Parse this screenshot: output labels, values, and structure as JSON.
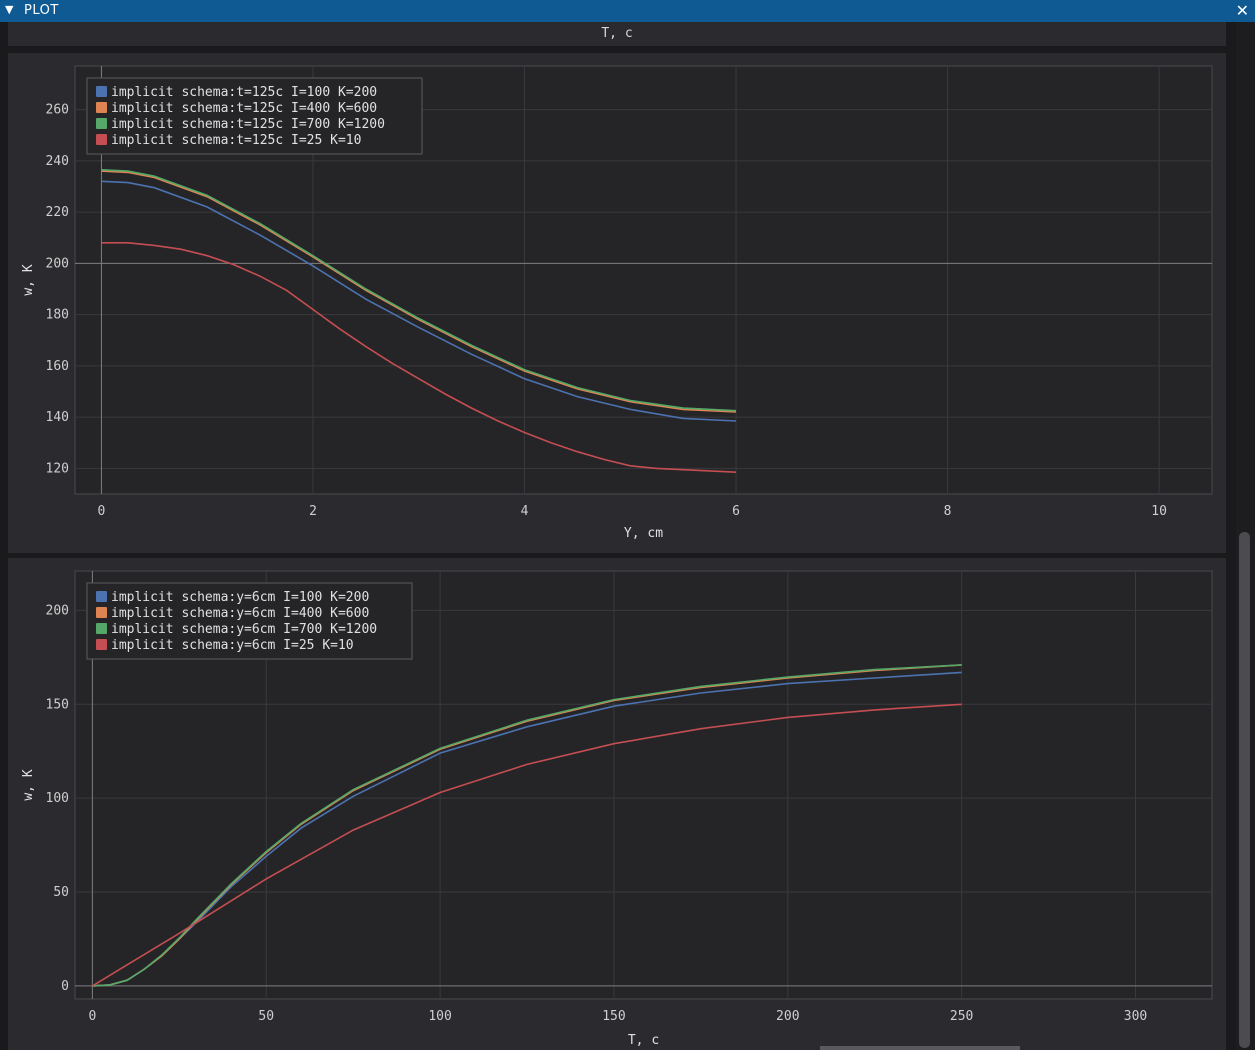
{
  "window": {
    "title": "PLOT",
    "collapse_icon": "triangle-down-icon",
    "close_icon": "close-icon"
  },
  "top_strip": {
    "xlabel": "T, c"
  },
  "charts": [
    {
      "type": "line",
      "title": "",
      "xlabel": "Y, cm",
      "ylabel": "w, K",
      "xlim": [
        -0.25,
        10.5
      ],
      "ylim": [
        110,
        277
      ],
      "xticks": [
        0,
        2,
        4,
        6,
        8,
        10
      ],
      "yticks": [
        120,
        140,
        160,
        180,
        200,
        220,
        240,
        260
      ],
      "grid": true,
      "legend_position": "top-left",
      "series": [
        {
          "name": "implicit schema:t=125c I=100 K=200",
          "color": "#4c72b0",
          "x": [
            0,
            0.25,
            0.5,
            1,
            1.5,
            2,
            2.5,
            3,
            3.5,
            4,
            4.5,
            5,
            5.5,
            6
          ],
          "y": [
            232,
            231.5,
            229.5,
            222,
            211,
            199,
            186,
            175,
            164.5,
            155,
            148,
            143,
            139.5,
            138.5
          ]
        },
        {
          "name": "implicit schema:t=125c I=400 K=600",
          "color": "#dd8452",
          "x": [
            0,
            0.25,
            0.5,
            1,
            1.5,
            2,
            2.5,
            3,
            3.5,
            4,
            4.5,
            5,
            5.5,
            6
          ],
          "y": [
            236,
            235.5,
            233.5,
            226,
            215,
            202.5,
            189.5,
            178,
            167.5,
            158,
            151,
            146,
            143,
            142
          ]
        },
        {
          "name": "implicit schema:t=125c I=700 K=1200",
          "color": "#55a868",
          "x": [
            0,
            0.25,
            0.5,
            1,
            1.5,
            2,
            2.5,
            3,
            3.5,
            4,
            4.5,
            5,
            5.5,
            6
          ],
          "y": [
            236.5,
            236,
            234,
            226.5,
            215.5,
            203,
            190,
            178.5,
            168,
            158.5,
            151.5,
            146.5,
            143.5,
            142.5
          ]
        },
        {
          "name": "implicit schema:t=125c I=25 K=10",
          "color": "#c44e52",
          "x": [
            0,
            0.25,
            0.5,
            0.75,
            1,
            1.25,
            1.5,
            1.75,
            2,
            2.25,
            2.5,
            2.75,
            3,
            3.25,
            3.5,
            3.75,
            4,
            4.25,
            4.5,
            4.75,
            5,
            5.25,
            5.5,
            5.75,
            6
          ],
          "y": [
            208,
            208,
            207,
            205.5,
            203,
            199.5,
            195,
            189.5,
            182,
            174.5,
            167.5,
            161,
            155,
            149,
            143.5,
            138.5,
            134,
            130,
            126.5,
            123.5,
            121,
            120,
            119.5,
            119,
            118.5
          ]
        }
      ]
    },
    {
      "type": "line",
      "title": "",
      "xlabel": "T, c",
      "ylabel": "w, K",
      "xlim": [
        -5,
        322
      ],
      "ylim": [
        -7,
        221
      ],
      "xticks": [
        0,
        50,
        100,
        150,
        200,
        250,
        300
      ],
      "yticks": [
        0,
        50,
        100,
        150,
        200
      ],
      "grid": true,
      "legend_position": "top-left",
      "series": [
        {
          "name": "implicit schema:y=6cm I=100 K=200",
          "color": "#4c72b0",
          "x": [
            0,
            5,
            10,
            15,
            20,
            25,
            30,
            40,
            50,
            60,
            75,
            100,
            125,
            150,
            175,
            200,
            225,
            250
          ],
          "y": [
            0,
            0.5,
            3,
            9,
            16,
            25,
            34,
            53,
            69,
            84,
            101,
            124,
            138,
            149,
            156,
            161,
            164,
            167
          ]
        },
        {
          "name": "implicit schema:y=6cm I=400 K=600",
          "color": "#dd8452",
          "x": [
            0,
            5,
            10,
            15,
            20,
            25,
            30,
            40,
            50,
            60,
            75,
            100,
            125,
            150,
            175,
            200,
            225,
            250
          ],
          "y": [
            0,
            0.5,
            3,
            9,
            16,
            25,
            35,
            54,
            71,
            86,
            104,
            126,
            141,
            152,
            159,
            164,
            168,
            171
          ]
        },
        {
          "name": "implicit schema:y=6cm I=700 K=1200",
          "color": "#55a868",
          "x": [
            0,
            5,
            10,
            15,
            20,
            25,
            30,
            40,
            50,
            60,
            75,
            100,
            125,
            150,
            175,
            200,
            225,
            250
          ],
          "y": [
            0,
            0.5,
            3,
            9,
            16.5,
            25.5,
            35.5,
            54.5,
            71.5,
            86.5,
            104.5,
            126.5,
            141.5,
            152.5,
            159.5,
            164.5,
            168.5,
            171
          ]
        },
        {
          "name": "implicit schema:y=6cm I=25 K=10",
          "color": "#c44e52",
          "x": [
            0,
            25,
            50,
            75,
            100,
            125,
            150,
            175,
            200,
            225,
            250
          ],
          "y": [
            0,
            28,
            57,
            83,
            103,
            118,
            129,
            137,
            143,
            147,
            150
          ]
        }
      ]
    }
  ]
}
